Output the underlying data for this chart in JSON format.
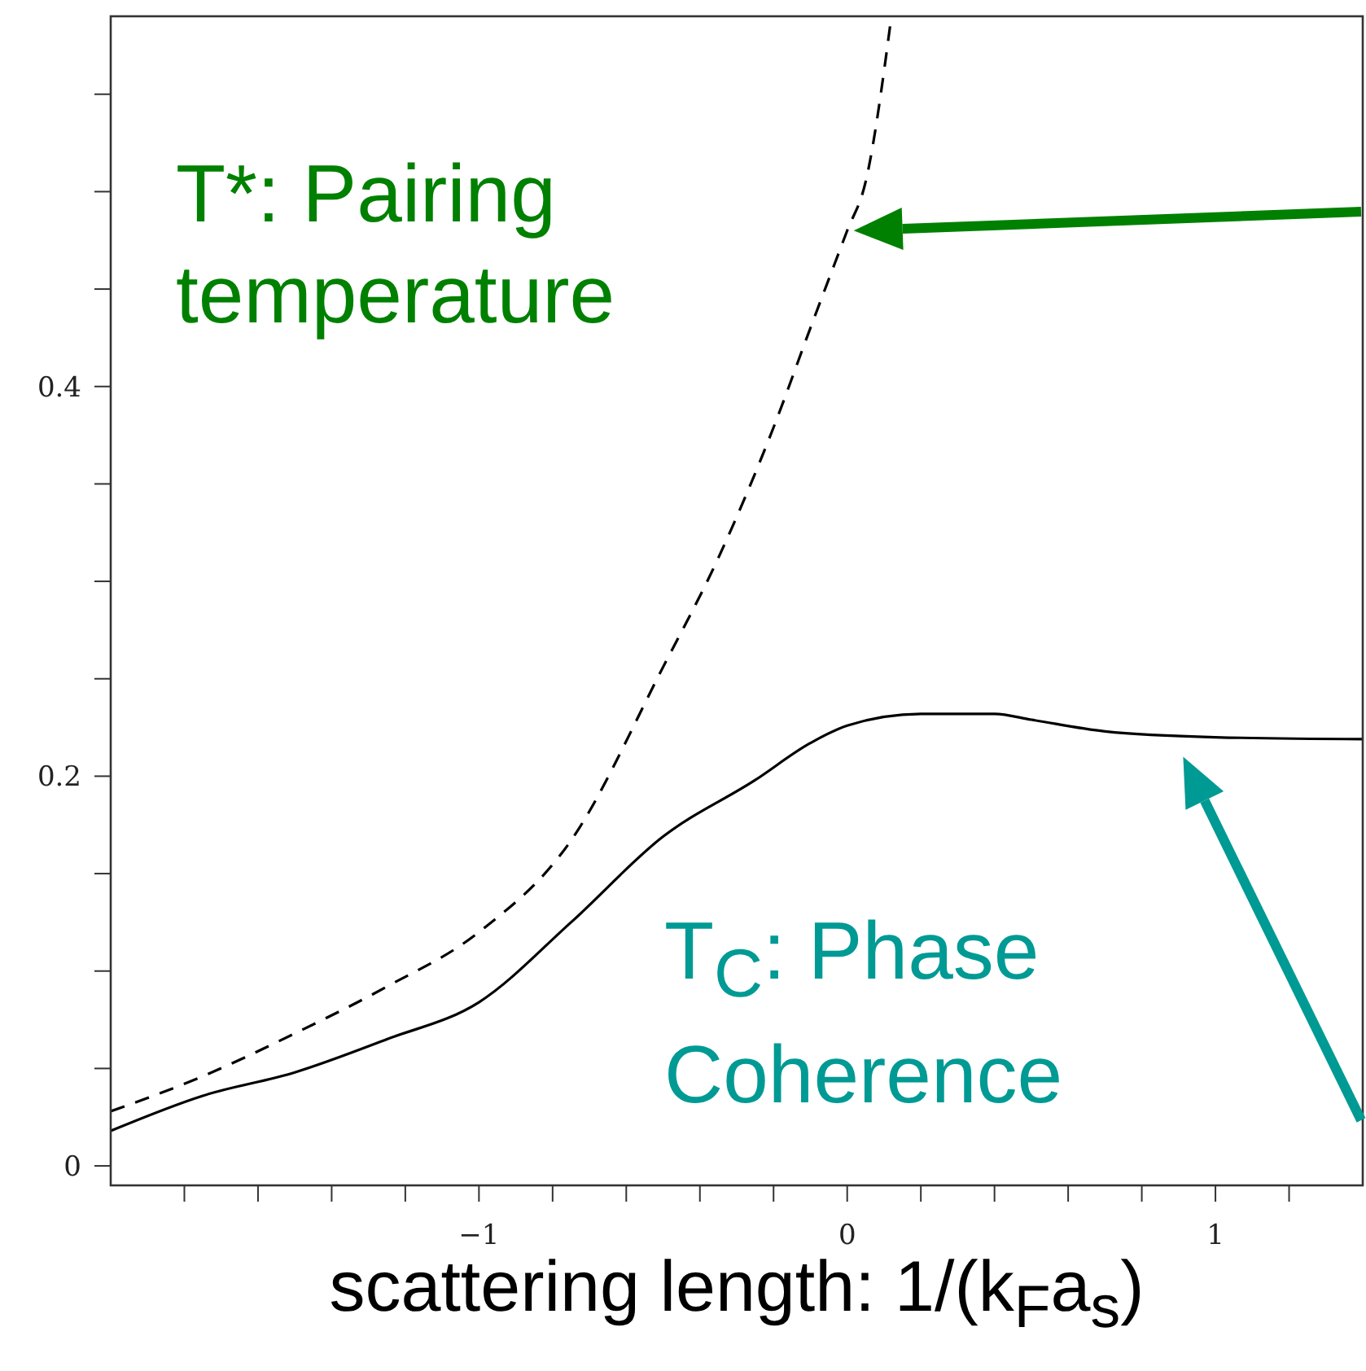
{
  "chart_data": {
    "type": "line",
    "xlabel": "scattering length: 1/(k$_{F}$a$_{s}$)",
    "xlim": [
      -2,
      1.4
    ],
    "xticks": [
      {
        "value": -1.8,
        "label": null
      },
      {
        "value": -1.6,
        "label": null
      },
      {
        "value": -1.4,
        "label": null
      },
      {
        "value": -1.2,
        "label": null
      },
      {
        "value": -1,
        "label": "−1"
      },
      {
        "value": -0.8,
        "label": null
      },
      {
        "value": -0.6,
        "label": null
      },
      {
        "value": -0.4,
        "label": null
      },
      {
        "value": -0.2,
        "label": null
      },
      0,
      {
        "value": 0.2,
        "label": null
      },
      {
        "value": 0.4,
        "label": null
      },
      {
        "value": 0.6,
        "label": null
      },
      {
        "value": 0.8,
        "label": null
      },
      1,
      {
        "value": 1.2,
        "label": null
      }
    ],
    "ylim": [
      -0.01,
      0.59
    ],
    "yticks": [
      0,
      {
        "value": 0.05,
        "label": null
      },
      {
        "value": 0.1,
        "label": null
      },
      {
        "value": 0.15,
        "label": null
      },
      0.2,
      {
        "value": 0.25,
        "label": null
      },
      {
        "value": 0.3,
        "label": null
      },
      {
        "value": 0.35,
        "label": null
      },
      0.4,
      {
        "value": 0.45,
        "label": null
      },
      {
        "value": 0.5,
        "label": null
      },
      {
        "value": 0.55,
        "label": null
      }
    ],
    "grid": false,
    "series": [
      {
        "color": "#000000",
        "line_style": "solid",
        "x": [
          -2,
          -1.75,
          -1.5,
          -1.25,
          -1,
          -0.75,
          -0.5,
          -0.25,
          -0.1,
          0,
          0.2,
          0.4,
          0.5,
          0.7,
          1,
          1.4
        ],
        "values": [
          0.018,
          0.036,
          0.048,
          0.065,
          0.084,
          0.125,
          0.169,
          0.198,
          0.217,
          0.226,
          0.232,
          0.232,
          0.229,
          0.223,
          0.22,
          0.219
        ]
      },
      {
        "color": "#000000",
        "line_style": "dashed",
        "x": [
          -2,
          -1.75,
          -1.5,
          -1.25,
          -1,
          -0.75,
          -0.5,
          -0.35,
          -0.2,
          -0.1,
          0,
          0.05,
          0.12
        ],
        "values": [
          0.028,
          0.046,
          0.068,
          0.092,
          0.12,
          0.167,
          0.256,
          0.312,
          0.379,
          0.43,
          0.48,
          0.505,
          0.59
        ]
      }
    ],
    "annotations": [
      {
        "text": "T*: Pairing temperature",
        "x": 0,
        "y": 0.48
      },
      {
        "text": "T$_{C}$: Phase Coherence",
        "x": 0.93,
        "y": 0.22
      }
    ]
  }
}
